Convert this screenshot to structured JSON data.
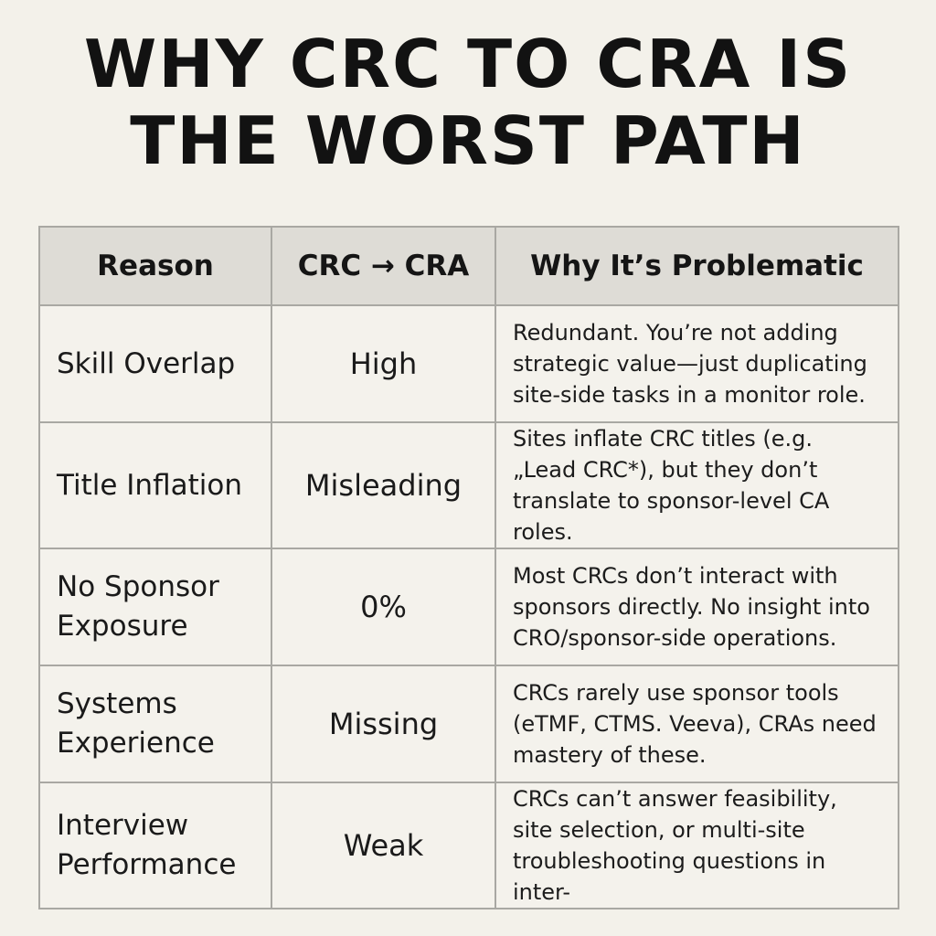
{
  "title": {
    "line1": "WHY CRC TO CRA IS",
    "line2": "THE WORST PATH"
  },
  "table": {
    "headers": [
      "Reason",
      "CRC → CRA",
      "Why It’s Problematic"
    ],
    "rows": [
      {
        "reason": "Skill Overlap",
        "value": "High",
        "why": "Redundant. You’re not adding strategic value—just duplicating site-side tasks in a monitor role."
      },
      {
        "reason": "Title Inflation",
        "value": "Misleading",
        "why": "Sites inflate CRC titles (e.g. „Lead CRC*), but they don’t translate to sponsor-level CA roles."
      },
      {
        "reason": "No Sponsor Exposure",
        "value": "0%",
        "why": "Most CRCs don’t interact with sponsors directly. No insight into CRO/sponsor-side operations."
      },
      {
        "reason": "Systems Experience",
        "value": "Missing",
        "why": "CRCs rarely use sponsor tools (eTMF, CTMS. Veeva), CRAs need mastery of these."
      },
      {
        "reason": "Interview Performance",
        "value": "Weak",
        "why": "CRCs can’t answer feasibility, site selection, or multi-site troubleshooting questions in inter-"
      }
    ]
  }
}
